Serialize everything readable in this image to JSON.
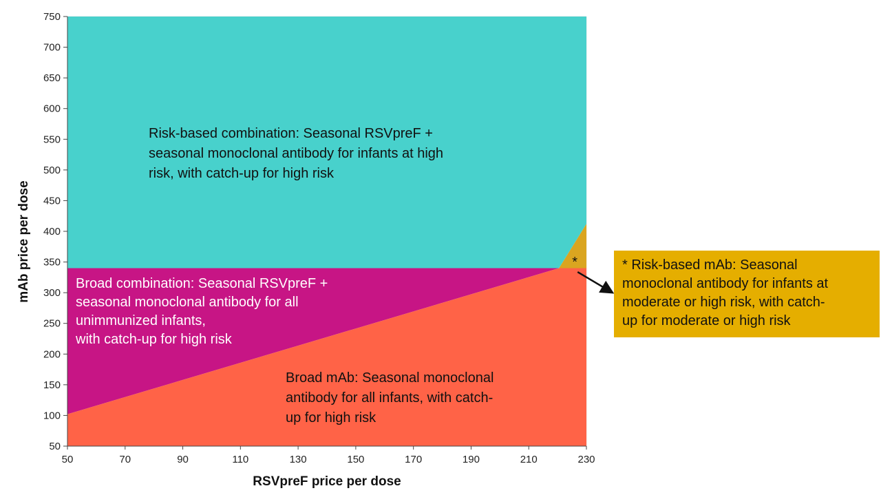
{
  "chart_data": {
    "type": "area",
    "xlabel": "RSVpreF price per dose",
    "ylabel": "mAb price per dose",
    "xlim": [
      50,
      230
    ],
    "ylim": [
      50,
      750
    ],
    "xticks": [
      50,
      70,
      90,
      110,
      130,
      150,
      170,
      190,
      210,
      230
    ],
    "yticks": [
      50,
      100,
      150,
      200,
      250,
      300,
      350,
      400,
      450,
      500,
      550,
      600,
      650,
      700,
      750
    ],
    "grid": true,
    "regions": [
      {
        "id": "risk-based-combination",
        "color": "#48D1CC",
        "polygon": [
          [
            50,
            340
          ],
          [
            220.5,
            340
          ],
          [
            230,
            412
          ],
          [
            230,
            750
          ],
          [
            50,
            750
          ]
        ],
        "label_lines": [
          "Risk-based combination: Seasonal RSVpreF +",
          "seasonal monoclonal antibody for infants at high",
          "risk, with catch-up for high risk"
        ]
      },
      {
        "id": "broad-combination",
        "color": "#C71585",
        "polygon": [
          [
            50,
            102
          ],
          [
            220.5,
            340
          ],
          [
            50,
            340
          ]
        ],
        "label_lines": [
          "Broad combination: Seasonal RSVpreF +",
          "seasonal monoclonal antibody for all",
          "unimmunized infants,",
          "with catch-up for high risk"
        ]
      },
      {
        "id": "broad-mab",
        "color": "#FF6347",
        "polygon": [
          [
            50,
            50
          ],
          [
            230,
            50
          ],
          [
            230,
            340
          ],
          [
            220.5,
            340
          ],
          [
            50,
            102
          ]
        ],
        "label_lines": [
          "Broad mAb: Seasonal monoclonal",
          "antibody for all infants, with catch-",
          "up for high risk"
        ]
      },
      {
        "id": "risk-based-mab",
        "color": "#DAA520",
        "polygon": [
          [
            220.5,
            340
          ],
          [
            230,
            340
          ],
          [
            230,
            412
          ]
        ],
        "marker": "*"
      }
    ],
    "annotation": {
      "marker": "*",
      "color": "#E5AE00",
      "point": [
        226,
        345
      ],
      "lines": [
        "* Risk-based mAb: Seasonal",
        "monoclonal antibody for infants at",
        "moderate or high risk, with catch-",
        "up for moderate or high risk"
      ]
    }
  }
}
